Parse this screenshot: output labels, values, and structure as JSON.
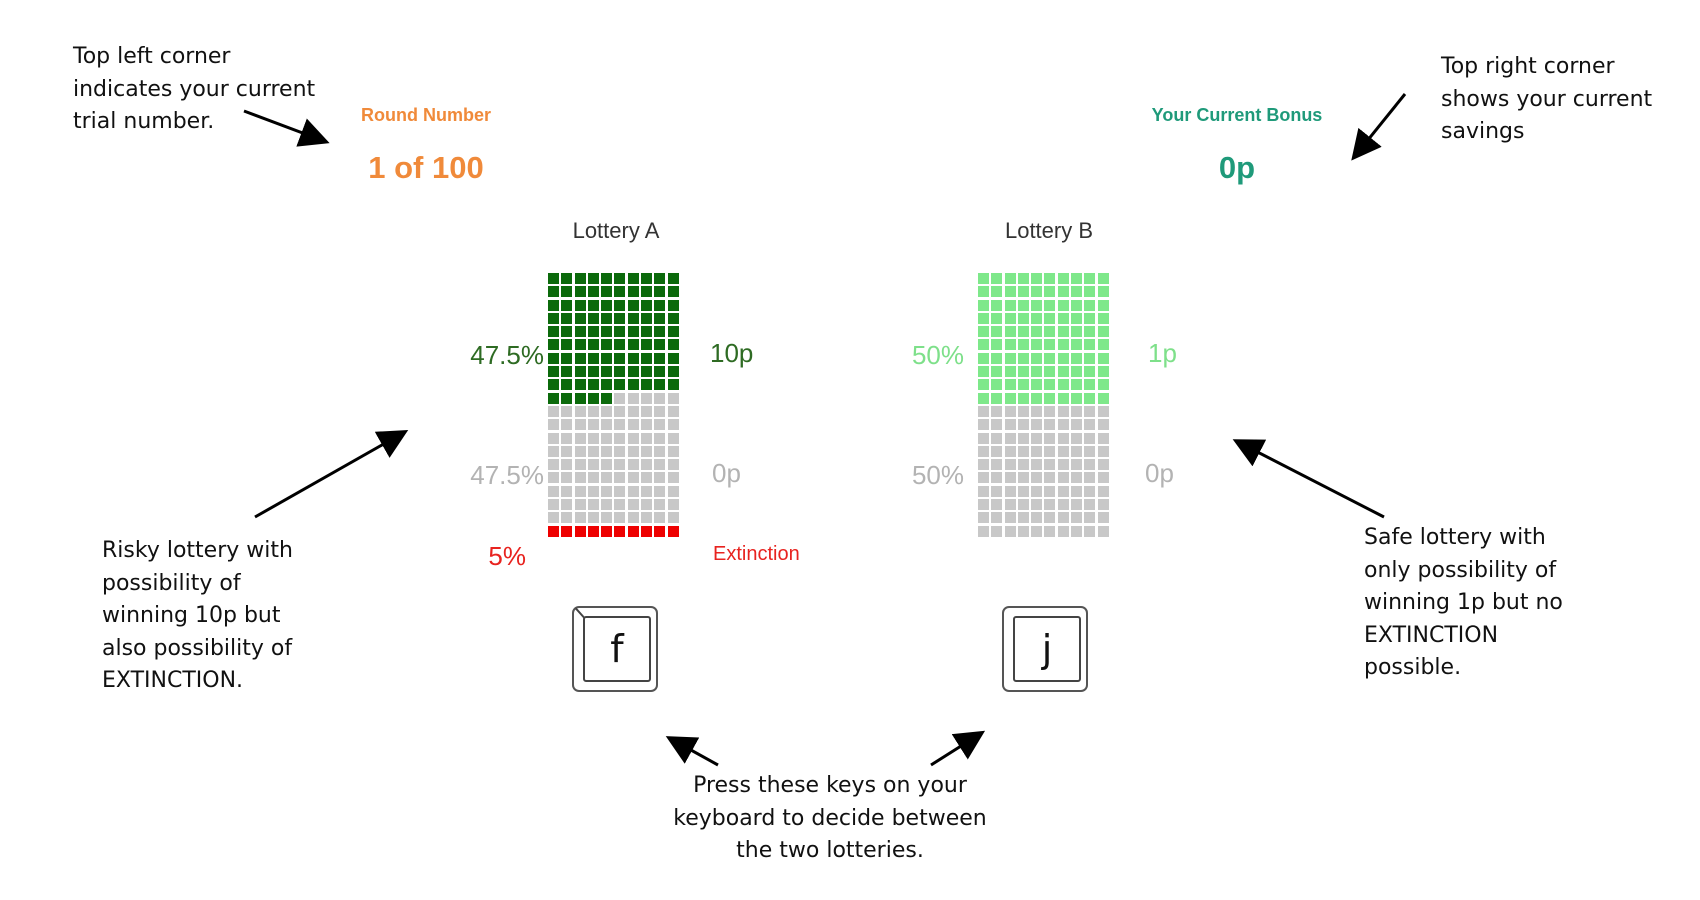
{
  "hud": {
    "round_label": "Round Number",
    "round_value": "1 of 100",
    "bonus_label": "Your Current Bonus",
    "bonus_value": "0p"
  },
  "lotteries": [
    {
      "title": "Lottery A",
      "key": "f",
      "outcomes": [
        {
          "probability": "47.5%",
          "payoff": "10p",
          "cells": 95,
          "color": "#0b6a0b",
          "pct_color": "#2e6b23",
          "pay_color": "#2e6b23"
        },
        {
          "probability": "47.5%",
          "payoff": "0p",
          "cells": 95,
          "color": "#c8c8c8",
          "pct_color": "#b3b3b3",
          "pay_color": "#b3b3b3"
        },
        {
          "probability": "5%",
          "payoff": "Extinction",
          "cells": 10,
          "color": "#ee0000",
          "pct_color": "#e8231f",
          "pay_color": "#e8231f"
        }
      ]
    },
    {
      "title": "Lottery B",
      "key": "j",
      "outcomes": [
        {
          "probability": "50%",
          "payoff": "1p",
          "cells": 100,
          "color": "#7ee88a",
          "pct_color": "#7ee08a",
          "pay_color": "#7ee08a"
        },
        {
          "probability": "50%",
          "payoff": "0p",
          "cells": 100,
          "color": "#c8c8c8",
          "pct_color": "#b3b3b3",
          "pay_color": "#b3b3b3"
        }
      ]
    }
  ],
  "annotations": {
    "top_left": [
      "Top left corner",
      "indicates your current",
      "trial number."
    ],
    "top_right": [
      "Top right corner",
      "shows your current",
      "savings"
    ],
    "risky": [
      "Risky lottery with",
      "possibility of",
      "winning 10p but",
      "also possibility of",
      "EXTINCTION."
    ],
    "safe": [
      "Safe lottery with",
      "only possibility of",
      "winning 1p but no",
      "EXTINCTION",
      "possible."
    ],
    "keys": [
      "Press these keys on your",
      "keyboard to decide between",
      "the two lotteries."
    ]
  },
  "colors": {
    "round": "#f08a3a",
    "bonus": "#1f9a7a"
  }
}
